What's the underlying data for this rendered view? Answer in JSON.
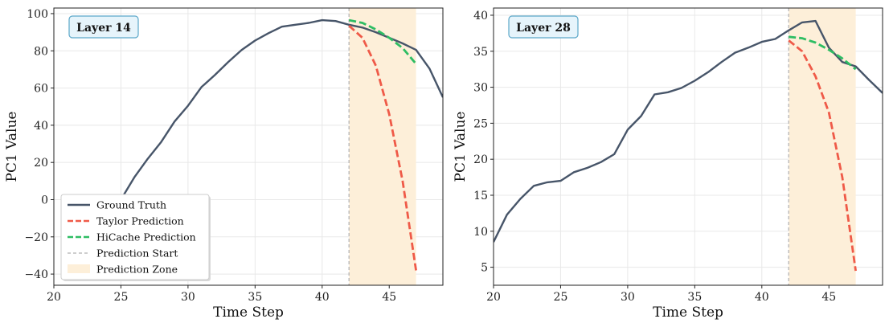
{
  "chart_data": [
    {
      "type": "line",
      "title": "",
      "annotation": "Layer 14",
      "xlabel": "Time Step",
      "ylabel": "PC1 Value",
      "xlim": [
        20,
        49
      ],
      "ylim": [
        -46,
        103
      ],
      "xticks": [
        20,
        25,
        30,
        35,
        40,
        45
      ],
      "yticks": [
        -40,
        -20,
        0,
        20,
        40,
        60,
        80,
        100
      ],
      "grid": true,
      "legend_position": "lower-left",
      "prediction_start": 42,
      "prediction_zone": [
        42,
        47
      ],
      "series": [
        {
          "name": "Ground Truth",
          "color": "#475569",
          "style": "solid",
          "x": [
            25,
            26,
            27,
            28,
            29,
            30,
            31,
            32,
            33,
            34,
            35,
            36,
            37,
            38,
            39,
            40,
            41,
            42,
            43,
            44,
            45,
            46,
            47,
            48,
            49
          ],
          "y": [
            0,
            12,
            22,
            31,
            42,
            50.5,
            60.5,
            67,
            74,
            80.5,
            85.5,
            89.5,
            93,
            94,
            95,
            96.5,
            96,
            94,
            92.5,
            90,
            87,
            84,
            80.5,
            70.5,
            55
          ]
        },
        {
          "name": "Taylor Prediction",
          "color": "#ef5a48",
          "style": "dashed",
          "x": [
            42,
            43,
            44,
            45,
            46,
            47
          ],
          "y": [
            93.5,
            87,
            72,
            46,
            10,
            -38
          ]
        },
        {
          "name": "HiCache Prediction",
          "color": "#2ebd63",
          "style": "dashed",
          "x": [
            42,
            43,
            44,
            45,
            46,
            47
          ],
          "y": [
            96.5,
            95,
            91.5,
            87,
            81.5,
            73
          ]
        }
      ]
    },
    {
      "type": "line",
      "title": "",
      "annotation": "Layer 28",
      "xlabel": "Time Step",
      "ylabel": "PC1 Value",
      "xlim": [
        20,
        49
      ],
      "ylim": [
        2.5,
        41
      ],
      "xticks": [
        20,
        25,
        30,
        35,
        40,
        45
      ],
      "yticks": [
        5,
        10,
        15,
        20,
        25,
        30,
        35,
        40
      ],
      "grid": true,
      "legend_position": "none",
      "prediction_start": 42,
      "prediction_zone": [
        42,
        47
      ],
      "series": [
        {
          "name": "Ground Truth",
          "color": "#475569",
          "style": "solid",
          "x": [
            20,
            21,
            22,
            23,
            24,
            25,
            26,
            27,
            28,
            29,
            30,
            31,
            32,
            33,
            34,
            35,
            36,
            37,
            38,
            39,
            40,
            41,
            42,
            43,
            44,
            45,
            46,
            47,
            48,
            49
          ],
          "y": [
            8.5,
            12.3,
            14.5,
            16.3,
            16.8,
            17,
            18.2,
            18.8,
            19.6,
            20.7,
            24.1,
            26,
            29,
            29.3,
            29.9,
            30.9,
            32.1,
            33.5,
            34.8,
            35.5,
            36.3,
            36.7,
            37.9,
            39,
            39.2,
            35.5,
            33.5,
            32.9,
            31,
            29.2
          ]
        },
        {
          "name": "Taylor Prediction",
          "color": "#ef5a48",
          "style": "dashed",
          "x": [
            42,
            43,
            44,
            45,
            46,
            47
          ],
          "y": [
            36.5,
            35,
            31.5,
            26.5,
            17.5,
            4.5
          ]
        },
        {
          "name": "HiCache Prediction",
          "color": "#2ebd63",
          "style": "dashed",
          "x": [
            42,
            43,
            44,
            45,
            46,
            47
          ],
          "y": [
            37,
            36.8,
            36.2,
            35.2,
            34,
            32.5
          ]
        }
      ]
    }
  ],
  "legend": {
    "items": [
      {
        "label": "Ground Truth",
        "color": "#475569",
        "style": "solid"
      },
      {
        "label": "Taylor Prediction",
        "color": "#ef5a48",
        "style": "dashed"
      },
      {
        "label": "HiCache Prediction",
        "color": "#2ebd63",
        "style": "dashed"
      },
      {
        "label": "Prediction Start",
        "color": "#b0b0b0",
        "style": "thin-dashed"
      },
      {
        "label": "Prediction Zone",
        "color": "#fdefd9",
        "style": "patch"
      }
    ]
  },
  "colors": {
    "zone_fill": "#fdefd9",
    "start_line": "#b0b0b0",
    "grid": "#e8e8e8",
    "label_box_fill": "#e6f4fb",
    "label_box_stroke": "#5ba7c9"
  }
}
